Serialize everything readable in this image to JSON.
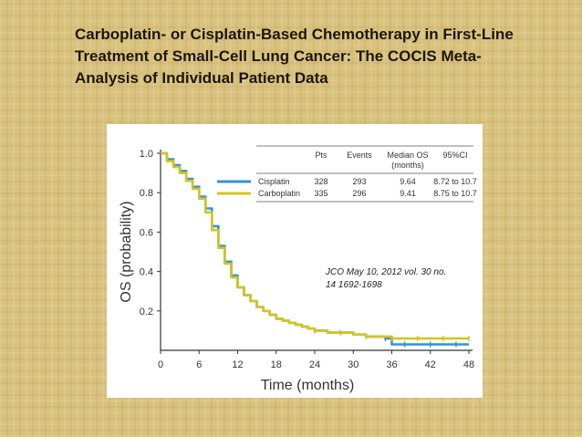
{
  "slide": {
    "title_lines": [
      "Carboplatin- or Cisplatin-Based Chemotherapy in First-Line",
      "Treatment of Small-Cell Lung Cancer: The COCIS Meta-",
      "Analysis of Individual Patient Data"
    ],
    "citation_lines": [
      "JCO May 10, 2012 vol. 30 no.",
      "14 1692-1698"
    ]
  },
  "chart_data": {
    "type": "line",
    "xlabel": "Time (months)",
    "ylabel": "OS (probability)",
    "xlim": [
      0,
      48
    ],
    "ylim": [
      0,
      1.0
    ],
    "x_ticks": [
      0,
      6,
      12,
      18,
      24,
      30,
      36,
      42,
      48
    ],
    "y_ticks": [
      0.2,
      0.4,
      0.6,
      0.8,
      1.0
    ],
    "y_tick_labels": [
      "0.2",
      "0.4",
      "0.6",
      "0.8",
      "1.0"
    ],
    "grid": false,
    "legend_position": "top-right",
    "table": {
      "headers": [
        "Pts",
        "Events",
        "Median OS",
        "(months)",
        "95%CI"
      ],
      "rows": [
        {
          "name": "Cisplatin",
          "pts": "328",
          "events": "293",
          "median_os": "9.64",
          "ci": "8.72 to 10.7"
        },
        {
          "name": "Carboplatin",
          "pts": "335",
          "events": "296",
          "median_os": "9.41",
          "ci": "8.75 to 10.7"
        }
      ]
    },
    "series": [
      {
        "name": "Cisplatin",
        "color": "#2f95d6",
        "x": [
          0,
          1,
          2,
          3,
          4,
          5,
          6,
          7,
          8,
          9,
          10,
          11,
          12,
          13,
          14,
          15,
          16,
          17,
          18,
          19,
          20,
          21,
          22,
          23,
          24,
          26,
          28,
          30,
          32,
          34,
          35,
          36,
          38,
          40,
          42,
          44,
          46,
          48
        ],
        "y": [
          1.0,
          0.97,
          0.94,
          0.91,
          0.87,
          0.83,
          0.78,
          0.72,
          0.63,
          0.53,
          0.45,
          0.38,
          0.32,
          0.28,
          0.25,
          0.22,
          0.2,
          0.18,
          0.16,
          0.15,
          0.14,
          0.13,
          0.12,
          0.11,
          0.1,
          0.09,
          0.09,
          0.08,
          0.07,
          0.07,
          0.06,
          0.03,
          0.03,
          0.03,
          0.03,
          0.03,
          0.03,
          0.03
        ]
      },
      {
        "name": "Carboplatin",
        "color": "#d4c41f",
        "x": [
          0,
          1,
          2,
          3,
          4,
          5,
          6,
          7,
          8,
          9,
          10,
          11,
          12,
          13,
          14,
          15,
          16,
          17,
          18,
          19,
          20,
          21,
          22,
          23,
          24,
          26,
          28,
          30,
          32,
          34,
          36,
          38,
          40,
          42,
          44,
          46,
          48
        ],
        "y": [
          1.0,
          0.96,
          0.93,
          0.9,
          0.86,
          0.82,
          0.77,
          0.7,
          0.61,
          0.52,
          0.44,
          0.37,
          0.32,
          0.28,
          0.25,
          0.22,
          0.2,
          0.18,
          0.16,
          0.15,
          0.14,
          0.13,
          0.12,
          0.11,
          0.1,
          0.09,
          0.09,
          0.08,
          0.07,
          0.07,
          0.06,
          0.06,
          0.06,
          0.06,
          0.06,
          0.06,
          0.06
        ]
      }
    ]
  }
}
